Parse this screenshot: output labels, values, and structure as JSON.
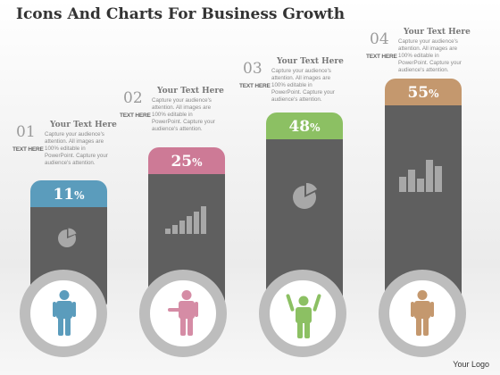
{
  "title": "Icons And Charts For Business Growth",
  "logo_text": "Your Logo",
  "steps": [
    {
      "num": "01",
      "sub": "TEXT HERE",
      "heading": "Your Text Here",
      "body": "Capture your audience's attention. All images are 100% editable in PowerPoint. Capture your audience's attention.",
      "percent": "11",
      "unit": "%",
      "cap_color": "#5b9cbc",
      "person_color": "#5b9cbc",
      "icon": "pie-chart-icon"
    },
    {
      "num": "02",
      "sub": "TEXT HERE",
      "heading": "Your Text Here",
      "body": "Capture your audience's attention. All images are 100% editable in PowerPoint. Capture your audience's attention.",
      "percent": "25",
      "unit": "%",
      "cap_color": "#cd7a96",
      "person_color": "#d58ca5",
      "icon": "step-bar-chart-icon"
    },
    {
      "num": "03",
      "sub": "TEXT HERE",
      "heading": "Your Text Here",
      "body": "Capture your audience's attention. All images are 100% editable in PowerPoint. Capture your audience's attention.",
      "percent": "48",
      "unit": "%",
      "cap_color": "#8cc063",
      "person_color": "#8cc063",
      "icon": "pie-chart-icon"
    },
    {
      "num": "04",
      "sub": "TEXT HERE",
      "heading": "Your Text Here",
      "body": "Capture your audience's attention. All images are 100% editable in PowerPoint. Capture your audience's attention.",
      "percent": "55",
      "unit": "%",
      "cap_color": "#c4986e",
      "person_color": "#c4986e",
      "icon": "bar-chart-icon"
    }
  ],
  "colors": {
    "bar": "#5f5f5f",
    "ring": "#bdbdbd",
    "icon": "#a8a8a8"
  }
}
